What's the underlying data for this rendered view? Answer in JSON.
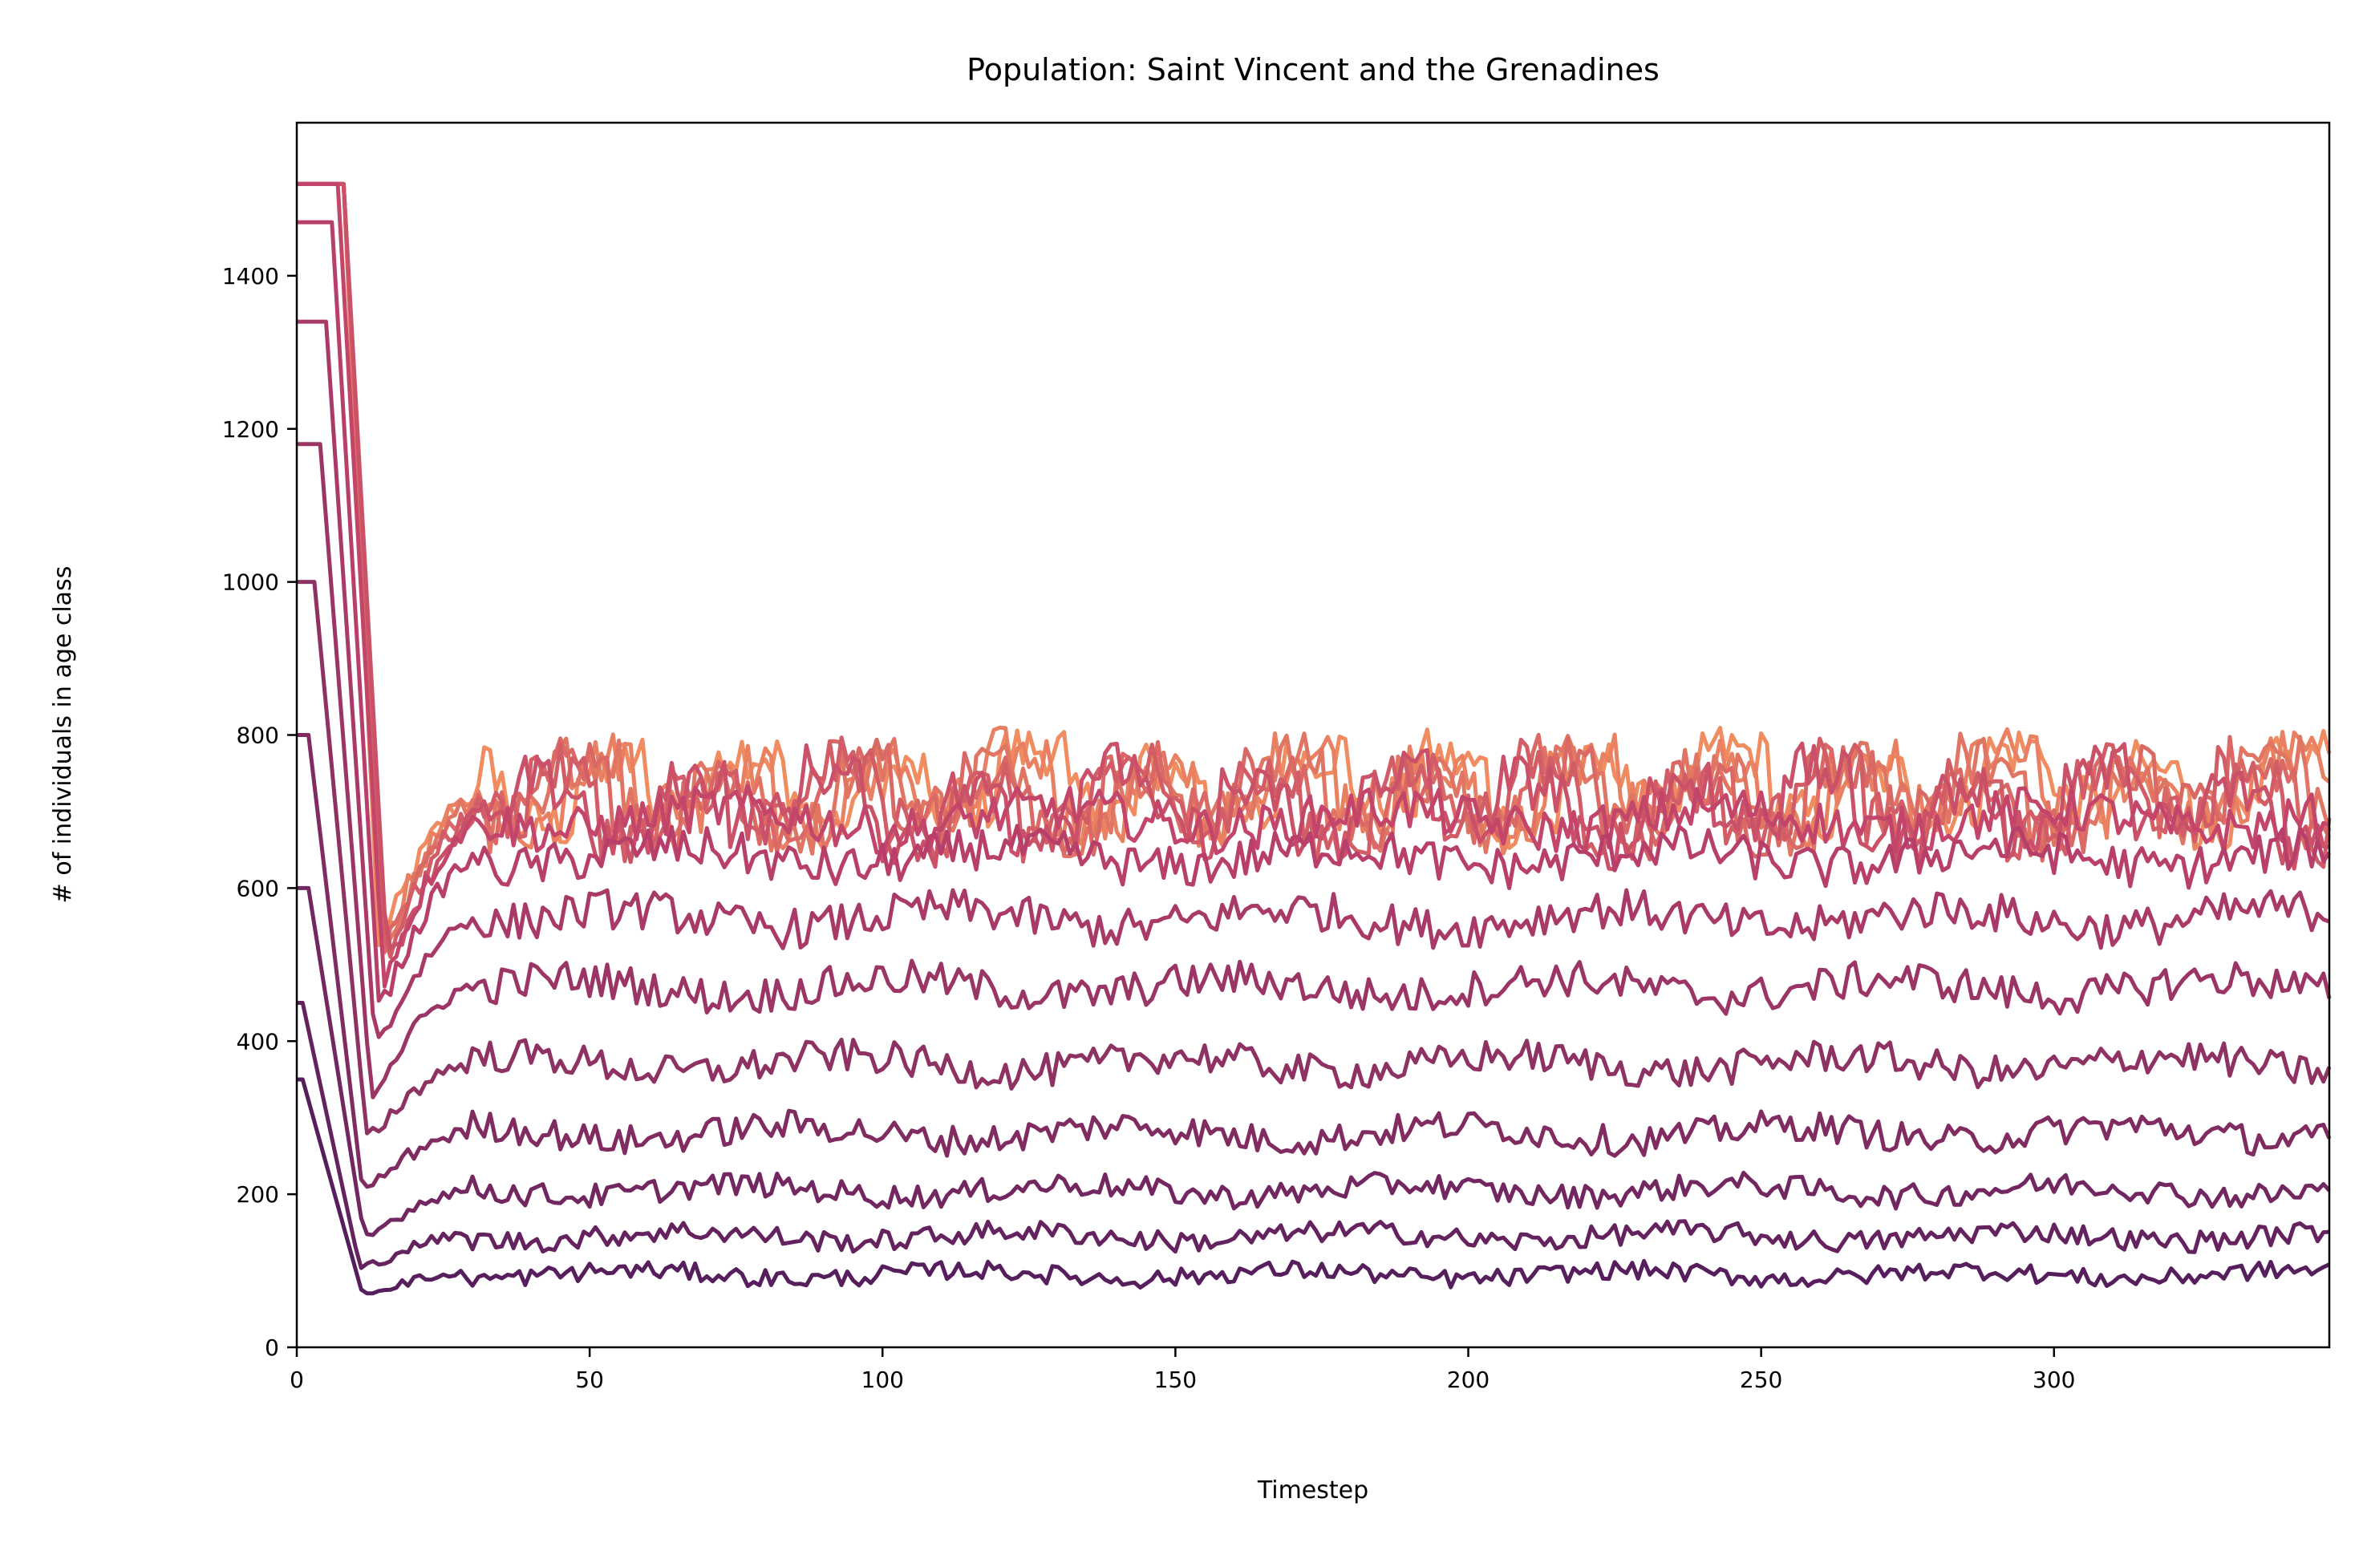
{
  "chart_data": {
    "type": "line",
    "title": "Population: Saint Vincent and the Grenadines",
    "xlabel": "Timestep",
    "ylabel": "# of individuals in age class",
    "xlim": [
      0,
      347
    ],
    "ylim": [
      0,
      1600
    ],
    "x_ticks": [
      0,
      50,
      100,
      150,
      200,
      250,
      300
    ],
    "y_ticks": [
      0,
      200,
      400,
      600,
      800,
      1000,
      1200,
      1400
    ],
    "grid": false,
    "legend": "none",
    "color_range": {
      "light": "#f08c60",
      "mid": "#c1426a",
      "dark": "#561e5c"
    },
    "series": [
      {
        "initial": 1520,
        "initial_duration": 8,
        "dip": 520,
        "mean": 725,
        "noise": 35,
        "upper_band": true
      },
      {
        "initial": 1520,
        "initial_duration": 8,
        "dip": 520,
        "mean": 720,
        "noise": 35,
        "upper_band": true
      },
      {
        "initial": 1520,
        "initial_duration": 8,
        "dip": 520,
        "mean": 715,
        "noise": 35,
        "upper_band": true
      },
      {
        "initial": 1520,
        "initial_duration": 8,
        "dip": 520,
        "mean": 710,
        "noise": 35,
        "upper_band": true
      },
      {
        "initial": 1520,
        "initial_duration": 8,
        "dip": 510,
        "mean": 705,
        "noise": 35,
        "upper_band": true
      },
      {
        "initial": 1520,
        "initial_duration": 8,
        "dip": 500,
        "mean": 700,
        "noise": 35,
        "upper_band": true
      },
      {
        "initial": 1520,
        "initial_duration": 7,
        "dip": 480,
        "mean": 690,
        "noise": 30,
        "upper_band": false
      },
      {
        "initial": 1470,
        "initial_duration": 6,
        "dip": 440,
        "mean": 640,
        "noise": 28,
        "upper_band": false
      },
      {
        "initial": 1340,
        "initial_duration": 5,
        "dip": 390,
        "mean": 560,
        "noise": 26,
        "upper_band": false
      },
      {
        "initial": 1180,
        "initial_duration": 4,
        "dip": 330,
        "mean": 470,
        "noise": 24,
        "upper_band": false
      },
      {
        "initial": 1000,
        "initial_duration": 3,
        "dip": 270,
        "mean": 370,
        "noise": 22,
        "upper_band": false
      },
      {
        "initial": 800,
        "initial_duration": 2,
        "dip": 200,
        "mean": 280,
        "noise": 20,
        "upper_band": false
      },
      {
        "initial": 600,
        "initial_duration": 2,
        "dip": 140,
        "mean": 205,
        "noise": 16,
        "upper_band": false
      },
      {
        "initial": 450,
        "initial_duration": 1,
        "dip": 100,
        "mean": 145,
        "noise": 14,
        "upper_band": false
      },
      {
        "initial": 350,
        "initial_duration": 1,
        "dip": 70,
        "mean": 95,
        "noise": 12,
        "upper_band": false
      }
    ]
  }
}
